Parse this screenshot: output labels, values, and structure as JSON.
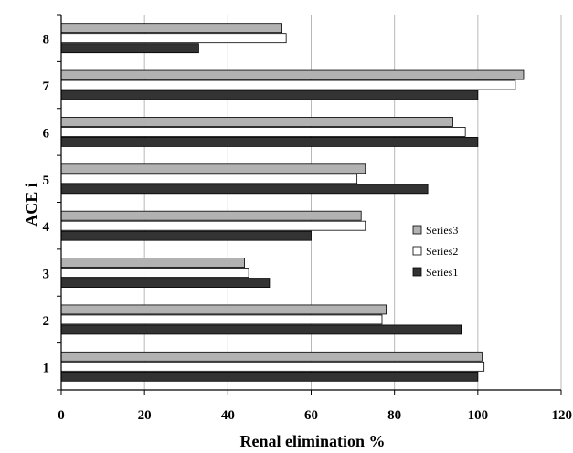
{
  "chart_data": {
    "type": "bar",
    "orientation": "horizontal",
    "categories": [
      "1",
      "2",
      "3",
      "4",
      "5",
      "6",
      "7",
      "8"
    ],
    "series": [
      {
        "name": "Series1",
        "color": "#333333",
        "values": [
          100,
          96,
          50,
          60,
          88,
          100,
          100,
          33
        ]
      },
      {
        "name": "Series2",
        "color": "#ffffff",
        "values": [
          101.5,
          77,
          45,
          73,
          71,
          97,
          109,
          54
        ]
      },
      {
        "name": "Series3",
        "color": "#b2b2b2",
        "values": [
          101,
          78,
          44,
          72,
          73,
          94,
          111,
          53
        ]
      }
    ],
    "title": "",
    "xlabel": "Renal elimination %",
    "ylabel": "ACE i",
    "xlim": [
      0,
      120
    ],
    "xticks": [
      "0",
      "20",
      "40",
      "60",
      "80",
      "100",
      "120"
    ],
    "grid": "vertical",
    "legend_position": "right",
    "legend_order": [
      "Series3",
      "Series2",
      "Series1"
    ]
  }
}
